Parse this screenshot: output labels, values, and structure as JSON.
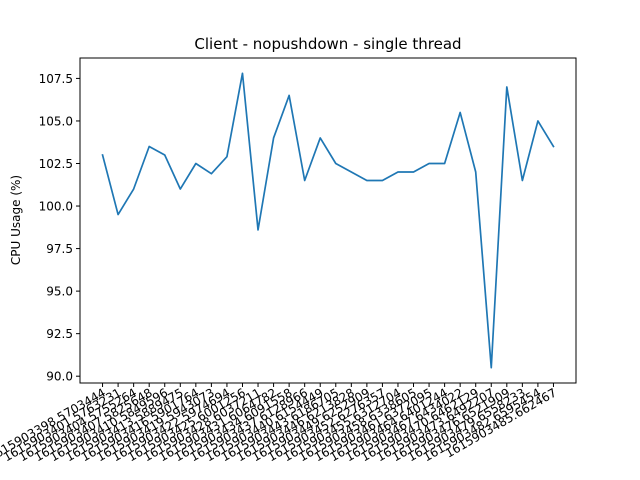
{
  "chart_data": {
    "type": "line",
    "title": "Client - nopushdown - single thread",
    "xlabel": "",
    "ylabel": "CPU Usage (%)",
    "ylim": [
      89.6,
      108.7
    ],
    "yticks": [
      90.0,
      92.5,
      95.0,
      97.5,
      100.0,
      102.5,
      105.0,
      107.5
    ],
    "ytick_labels": [
      "90.0",
      "92.5",
      "95.0",
      "97.5",
      "100.0",
      "102.5",
      "105.0",
      "107.5"
    ],
    "grid": false,
    "categories": [
      "1615903398.5703444",
      "1615903401.5763231",
      "1615903404.5755264",
      "1615903407.5825648",
      "1615903410.5849596",
      "1615903413.5889475",
      "1615903416.5901764",
      "1615903419.5943073",
      "1615903422.5974694",
      "1615903425.6001256",
      "1615903428.6037211",
      "1615903431.6064782",
      "1615903434.6091558",
      "1615903437.6128966",
      "1615903440.6154449",
      "1615903443.6186705",
      "1615903446.6213828",
      "1615903449.6252909",
      "1615903452.6276357",
      "1615903455.6312704",
      "1615903458.6338605",
      "1615903461.6372095",
      "1615903464.6401244",
      "1615903467.6434022",
      "1615903470.6462129",
      "1615903473.6492207",
      "1615903476.6521909",
      "1615903479.6558233",
      "1615903482.6595454",
      "1615903485.662467"
    ],
    "series": [
      {
        "name": "CPU Usage",
        "color": "#1f77b4",
        "values": [
          103.0,
          99.5,
          101.0,
          103.5,
          103.0,
          101.0,
          102.5,
          101.9,
          102.9,
          107.8,
          98.6,
          104.0,
          106.5,
          101.5,
          104.0,
          102.5,
          102.0,
          101.5,
          101.5,
          102.0,
          102.0,
          102.5,
          102.5,
          105.5,
          102.0,
          90.5,
          107.0,
          101.5,
          105.0,
          103.5
        ]
      }
    ]
  }
}
